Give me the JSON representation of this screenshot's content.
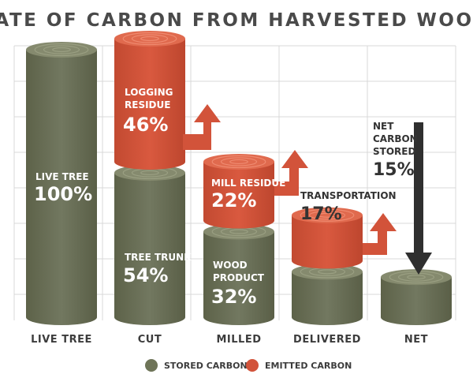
{
  "colors": {
    "stored": "#6e7458",
    "stored_top": "#858a6e",
    "emitted": "#d2533a",
    "emitted_top": "#e06a4e",
    "net_arrow": "#2f2f2f",
    "grid": "#d9d9d9"
  },
  "chart_data": {
    "type": "bar",
    "title": "FATE OF CARBON FROM HARVESTED WOOD",
    "categories": [
      "LIVE TREE",
      "CUT",
      "MILLED",
      "DELIVERED",
      "NET"
    ],
    "ylim": [
      0,
      100
    ],
    "grid": true,
    "legend_position": "bottom",
    "series": [
      {
        "name": "STORED CARBON",
        "values": [
          100,
          54,
          32,
          17,
          15
        ]
      },
      {
        "name": "EMITTED CARBON",
        "values": [
          0,
          46,
          22,
          17,
          0
        ]
      }
    ],
    "annotations": {
      "live_tree": {
        "label": "LIVE TREE",
        "value": "100%"
      },
      "tree_trunk": {
        "label": "TREE TRUNK",
        "value": "54%"
      },
      "wood_product": {
        "label_1": "WOOD",
        "label_2": "PRODUCT",
        "value": "32%"
      },
      "logging_residue": {
        "label_1": "LOGGING",
        "label_2": "RESIDUE",
        "value": "46%"
      },
      "mill_residue": {
        "label": "MILL RESIDUE",
        "value": "22%"
      },
      "transportation": {
        "label": "TRANSPORTATION",
        "value": "17%"
      },
      "net_carbon": {
        "label_1": "NET",
        "label_2": "CARBON",
        "label_3": "STORED",
        "value": "15%"
      }
    }
  }
}
